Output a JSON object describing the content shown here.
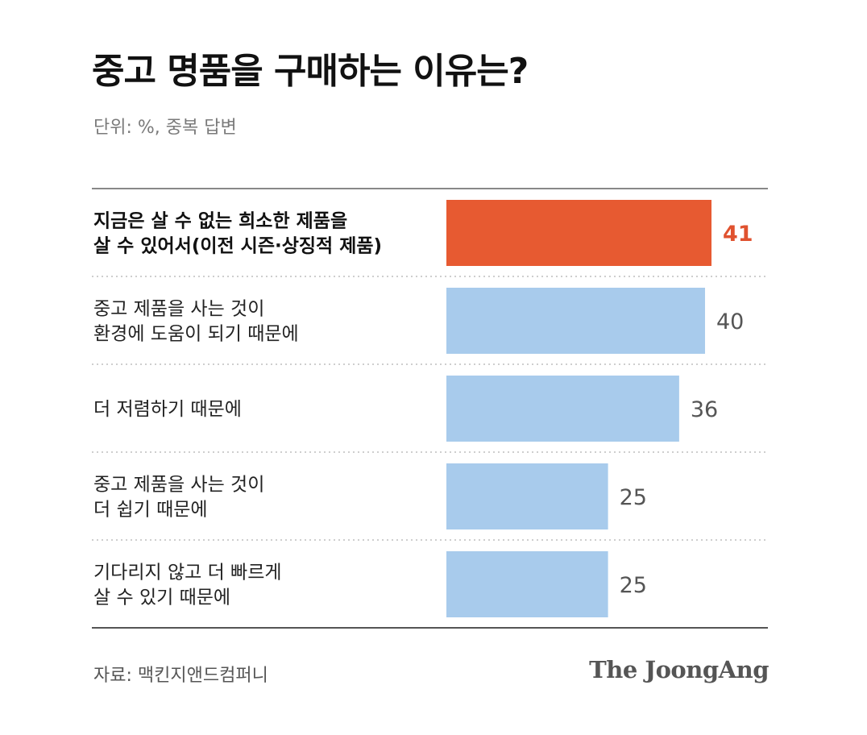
{
  "header": {
    "title": "중고 명품을 구매하는 이유는?",
    "unit_note": "단위: %, 중복 답변"
  },
  "footer": {
    "source": "자료: 맥킨지앤드컴퍼니",
    "brand": "The JoongAng"
  },
  "colors": {
    "highlight": "#e75a31",
    "bar": "#a8cbec",
    "highlight_text": "#e0522f",
    "value_text": "#555555"
  },
  "chart_data": {
    "type": "bar",
    "orientation": "horizontal",
    "title": "중고 명품을 구매하는 이유는?",
    "subtitle": "단위: %, 중복 답변",
    "unit": "%",
    "categories": [
      [
        "지금은 살 수 없는 희소한 제품을",
        "살 수 있어서(이전 시즌·상징적 제품)"
      ],
      [
        "중고 제품을 사는 것이",
        "환경에 도움이 되기 때문에"
      ],
      [
        "더 저렴하기 때문에"
      ],
      [
        "중고 제품을 사는 것이",
        "더 쉽기 때문에"
      ],
      [
        "기다리지 않고 더 빠르게",
        "살 수 있기 때문에"
      ]
    ],
    "values": [
      41,
      40,
      36,
      25,
      25
    ],
    "highlight_index": 0,
    "source": "자료: 맥킨지앤드컴퍼니"
  }
}
